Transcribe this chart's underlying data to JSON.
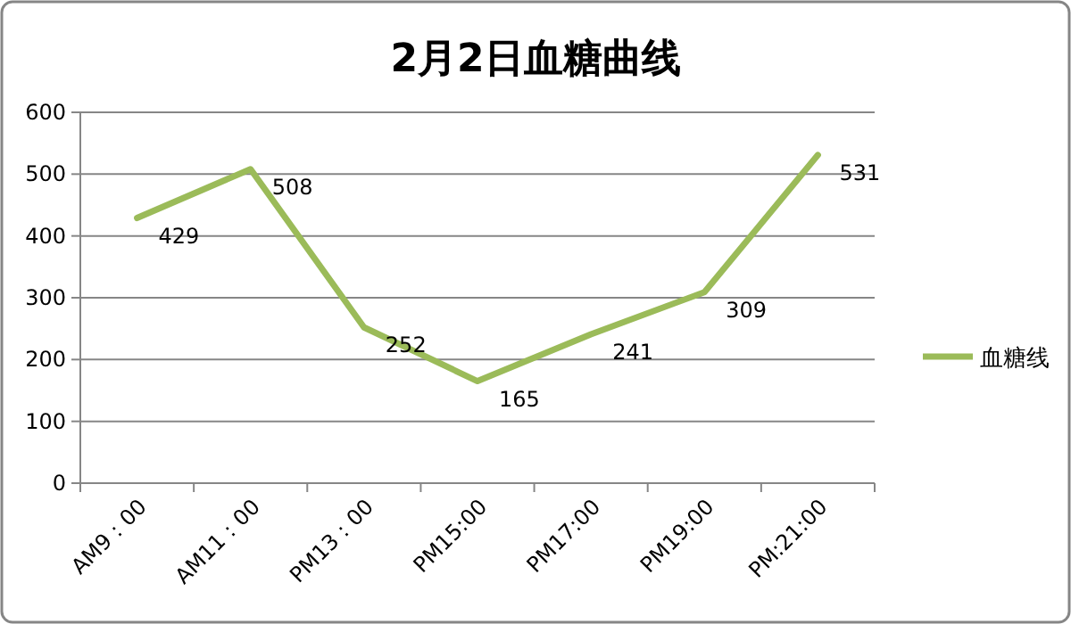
{
  "chart_data": {
    "type": "line",
    "title": "2月2日血糖曲线",
    "categories": [
      "AM9：00",
      "AM11：00",
      "PM13：00",
      "PM15:00",
      "PM17:00",
      "PM19:00",
      "PM:21:00"
    ],
    "series": [
      {
        "name": "血糖线",
        "color": "#9bbb59",
        "values": [
          429,
          508,
          252,
          165,
          241,
          309,
          531
        ]
      }
    ],
    "ylim": [
      0,
      600
    ],
    "yticks": [
      0,
      100,
      200,
      300,
      400,
      500,
      600
    ],
    "grid": "y",
    "legend": "right",
    "data_labels": true,
    "marker": "none",
    "line_style": "solid"
  }
}
